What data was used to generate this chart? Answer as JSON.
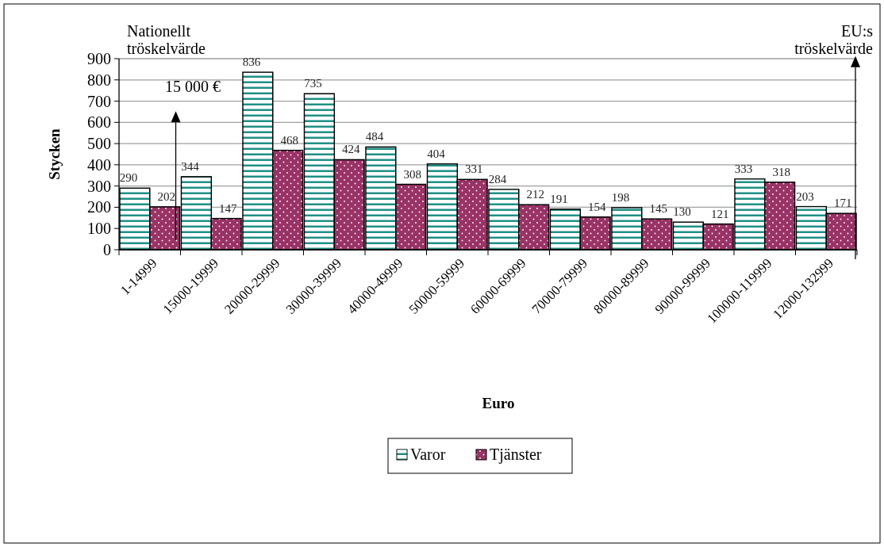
{
  "chart_data": {
    "type": "bar",
    "xlabel": "Euro",
    "ylabel": "Stycken",
    "categories": [
      "1-14999",
      "15000-19999",
      "20000-29999",
      "30000-39999",
      "40000-49999",
      "50000-59999",
      "60000-69999",
      "70000-79999",
      "80000-89999",
      "90000-99999",
      "100000-119999",
      "12000-132999"
    ],
    "series": [
      {
        "name": "Varor",
        "color": "#1f8f86",
        "values": [
          290,
          344,
          836,
          735,
          484,
          404,
          284,
          191,
          198,
          130,
          333,
          203
        ]
      },
      {
        "name": "Tjänster",
        "color": "#993366",
        "values": [
          202,
          147,
          468,
          424,
          308,
          331,
          212,
          154,
          145,
          121,
          318,
          171
        ]
      }
    ],
    "ylim": [
      0,
      900
    ],
    "yticks": [
      0,
      100,
      200,
      300,
      400,
      500,
      600,
      700,
      800,
      900
    ],
    "grid": "y",
    "legend": "bottom",
    "data_labels": true,
    "annotations": [
      "Nationellt\ntröskelvärde",
      "15 000 €",
      "EU:s\ntröskelvärde"
    ]
  }
}
